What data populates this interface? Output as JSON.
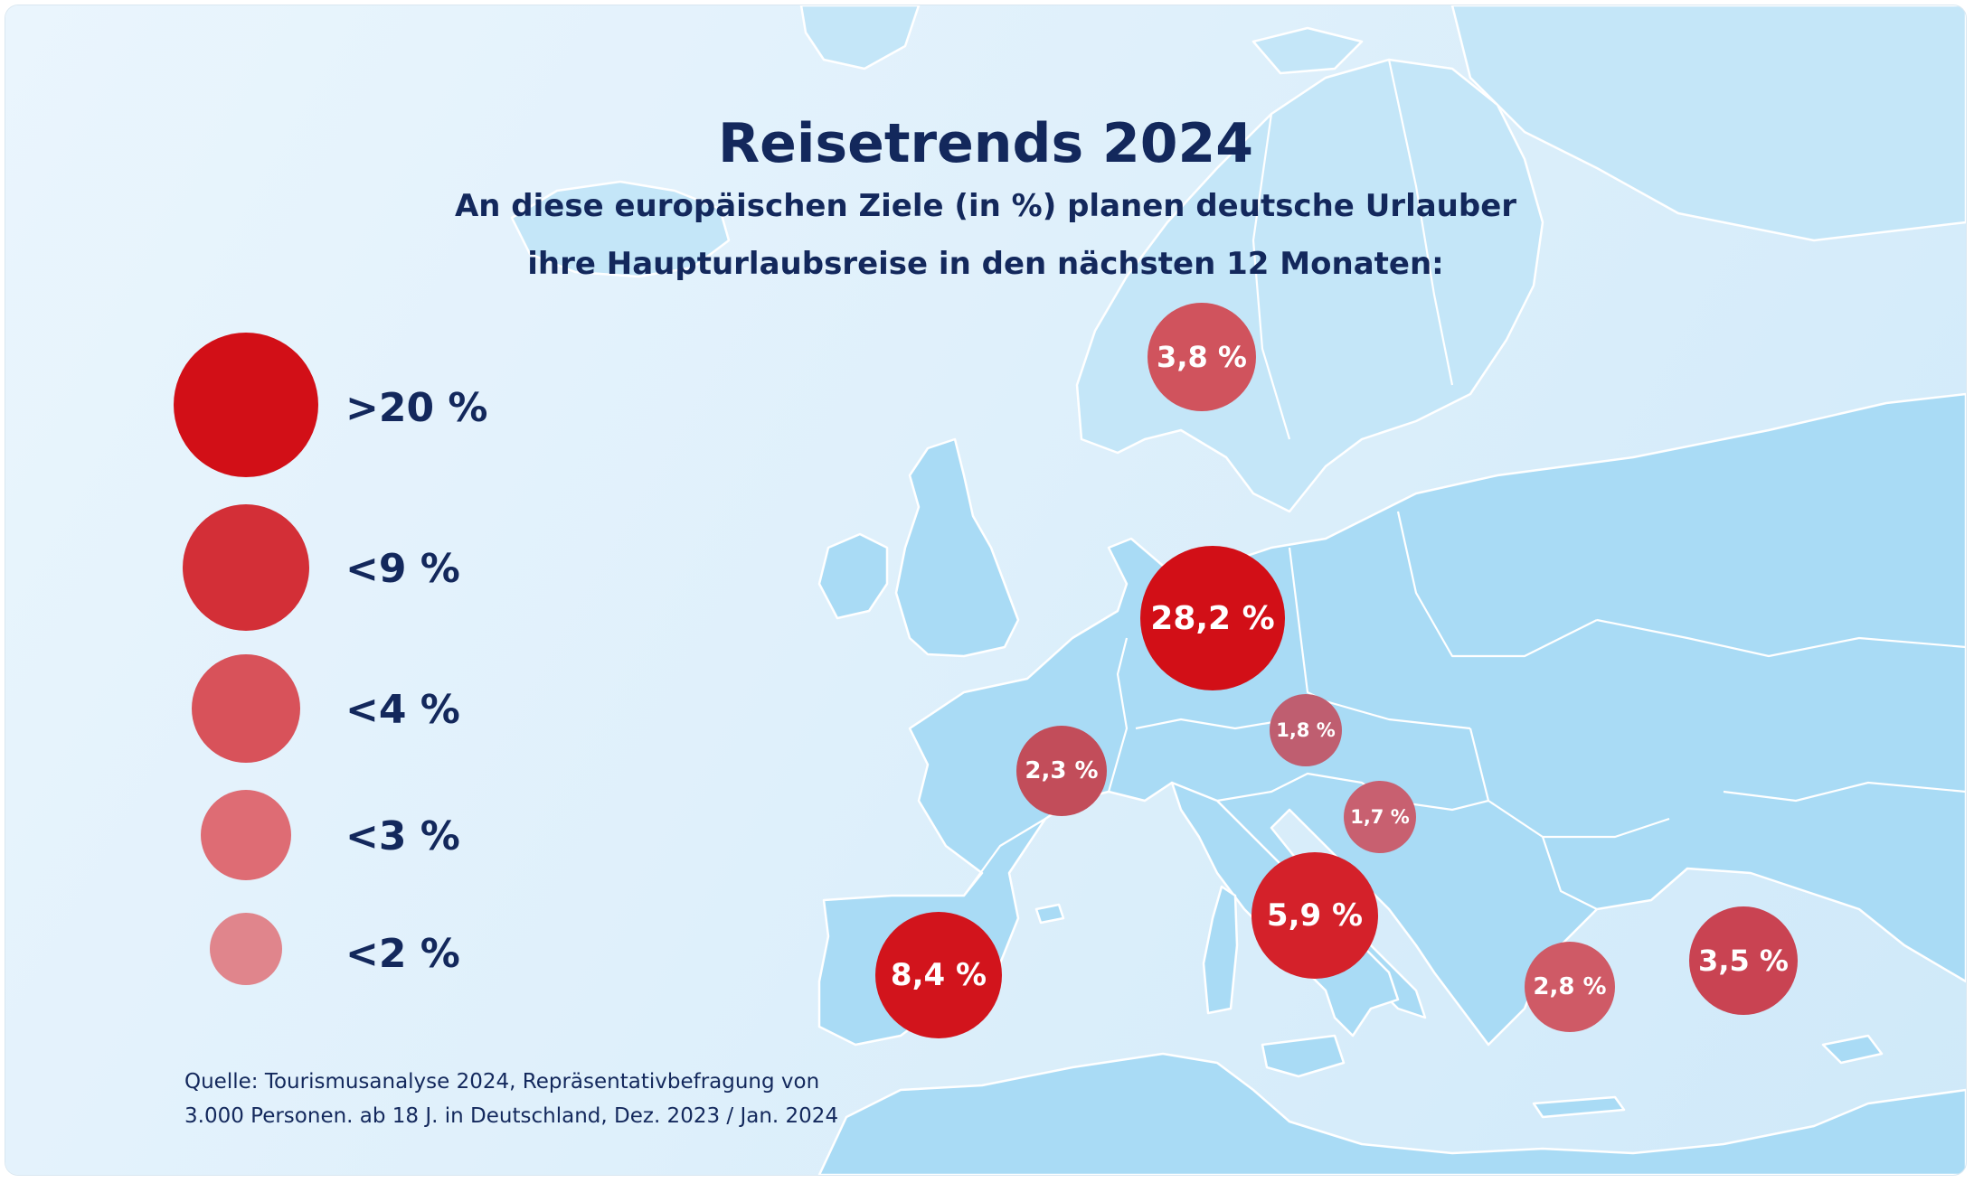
{
  "title": "Reisetrends 2024",
  "subtitle": {
    "line1": "An diese europäischen Ziele (in %) planen deutsche Urlauber",
    "line2": "ihre Haupturlaubsreise in den nächsten 12 Monaten:"
  },
  "legend": [
    {
      "label": ">20 %",
      "color": "#d20f17"
    },
    {
      "label": "<9 %",
      "color": "#d32f37"
    },
    {
      "label": "<4 %",
      "color": "#d8525a"
    },
    {
      "label": "<3 %",
      "color": "#de6c74"
    },
    {
      "label": "<2 %",
      "color": "#e0858c"
    }
  ],
  "destinations": [
    {
      "name": "Deutschland",
      "label": "28,2 %",
      "value": 28.2,
      "color": "#d20f17"
    },
    {
      "name": "Spanien",
      "label": "8,4 %",
      "value": 8.4,
      "color": "#d2141c"
    },
    {
      "name": "Italien",
      "label": "5,9 %",
      "value": 5.9,
      "color": "#d4212a"
    },
    {
      "name": "Skandinavien",
      "label": "3,8 %",
      "value": 3.8,
      "color": "#d0535d"
    },
    {
      "name": "Türkei",
      "label": "3,5 %",
      "value": 3.5,
      "color": "#c94352"
    },
    {
      "name": "Griechenland",
      "label": "2,8 %",
      "value": 2.8,
      "color": "#cf5a66"
    },
    {
      "name": "Frankreich",
      "label": "2,3 %",
      "value": 2.3,
      "color": "#c24d5a"
    },
    {
      "name": "Österreich",
      "label": "1,8 %",
      "value": 1.8,
      "color": "#bf5e70"
    },
    {
      "name": "Kroatien",
      "label": "1,7 %",
      "value": 1.7,
      "color": "#c86070"
    }
  ],
  "source": {
    "line1": "Quelle: Tourismusanalyse 2024, Repräsentativbefragung von",
    "line2": "3.000 Personen. ab 18 J. in Deutschland, Dez. 2023 / Jan. 2024"
  }
}
